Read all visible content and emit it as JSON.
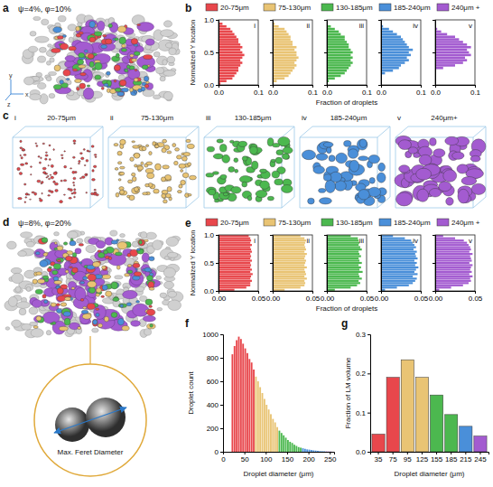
{
  "chart_data": [
    {
      "type": "histogram",
      "orientation": "horizontal",
      "panel": "b",
      "legend": "top",
      "ylabel": "Normalized Y location",
      "xlabel": "Fraction of droplets",
      "bins": [
        0,
        0.04,
        0.08,
        0.12,
        0.16,
        0.2,
        0.24,
        0.28,
        0.32,
        0.36,
        0.4,
        0.44,
        0.48,
        0.52,
        0.56,
        0.6,
        0.64,
        0.68,
        0.72,
        0.76,
        0.8,
        0.84,
        0.88,
        0.92,
        0.96,
        1
      ],
      "xlim": [
        0,
        0.1
      ],
      "xticks": [
        {
          "value": 0,
          "label": "0.0"
        },
        {
          "value": 0.1,
          "label": "0.1"
        }
      ],
      "ylim": [
        0,
        1
      ],
      "yticks": [
        {
          "value": 0,
          "label": "0.0"
        },
        {
          "value": 0.5,
          "label": "0.5"
        },
        {
          "value": 1,
          "label": "1.0"
        }
      ],
      "series": [
        {
          "name": "20-75μm",
          "subpanel": "i",
          "color": "#e8474c",
          "values": [
            0.005,
            0.02,
            0.035,
            0.04,
            0.045,
            0.05,
            0.05,
            0.055,
            0.06,
            0.055,
            0.06,
            0.065,
            0.06,
            0.055,
            0.06,
            0.055,
            0.05,
            0.05,
            0.045,
            0.04,
            0.035,
            0.03,
            0.02,
            0.01,
            0
          ]
        },
        {
          "name": "75-130μm",
          "subpanel": "ii",
          "color": "#e9c474",
          "values": [
            0,
            0.01,
            0.03,
            0.04,
            0.045,
            0.05,
            0.055,
            0.06,
            0.055,
            0.06,
            0.065,
            0.06,
            0.06,
            0.055,
            0.06,
            0.05,
            0.05,
            0.045,
            0.045,
            0.04,
            0.035,
            0.03,
            0.015,
            0.005,
            0
          ]
        },
        {
          "name": "130-185μm",
          "subpanel": "iii",
          "color": "#4cb84f",
          "values": [
            0,
            0.005,
            0.02,
            0.035,
            0.045,
            0.05,
            0.055,
            0.06,
            0.065,
            0.06,
            0.065,
            0.06,
            0.065,
            0.06,
            0.055,
            0.055,
            0.05,
            0.045,
            0.045,
            0.035,
            0.03,
            0.02,
            0.01,
            0,
            0
          ]
        },
        {
          "name": "185-240μm",
          "subpanel": "iv",
          "color": "#4a8fd9",
          "values": [
            0,
            0,
            0,
            0,
            0.01,
            0.03,
            0.045,
            0.05,
            0.06,
            0.07,
            0.065,
            0.075,
            0.07,
            0.08,
            0.07,
            0.065,
            0.06,
            0.055,
            0.05,
            0.04,
            0.03,
            0.02,
            0.005,
            0,
            0
          ]
        },
        {
          "name": "240μm +",
          "subpanel": "v",
          "color": "#a35bd0",
          "values": [
            0,
            0,
            0,
            0,
            0,
            0,
            0.02,
            0.05,
            0.07,
            0.08,
            0.075,
            0.09,
            0.085,
            0.08,
            0.09,
            0.08,
            0.07,
            0.06,
            0.05,
            0.03,
            0.015,
            0.005,
            0,
            0,
            0
          ]
        }
      ]
    },
    {
      "type": "histogram",
      "orientation": "horizontal",
      "panel": "e",
      "legend": "top",
      "ylabel": "Normalized Y location",
      "xlabel": "Fraction of droplets",
      "bins": [
        0,
        0.04,
        0.08,
        0.12,
        0.16,
        0.2,
        0.24,
        0.28,
        0.32,
        0.36,
        0.4,
        0.44,
        0.48,
        0.52,
        0.56,
        0.6,
        0.64,
        0.68,
        0.72,
        0.76,
        0.8,
        0.84,
        0.88,
        0.92,
        0.96,
        1
      ],
      "xlim": [
        0,
        0.05
      ],
      "xticks": [
        {
          "value": 0,
          "label": "0.00"
        },
        {
          "value": 0.05,
          "label": "0.05"
        }
      ],
      "ylim": [
        0,
        1
      ],
      "yticks": [
        {
          "value": 0,
          "label": "0.0"
        },
        {
          "value": 0.5,
          "label": "0.5"
        },
        {
          "value": 1,
          "label": "1.0"
        }
      ],
      "series": [
        {
          "name": "20-75μm",
          "subpanel": "i",
          "color": "#e8474c",
          "values": [
            0.02,
            0.035,
            0.04,
            0.04,
            0.042,
            0.04,
            0.041,
            0.043,
            0.04,
            0.042,
            0.04,
            0.041,
            0.04,
            0.042,
            0.04,
            0.041,
            0.04,
            0.042,
            0.041,
            0.04,
            0.042,
            0.04,
            0.041,
            0.04,
            0.038
          ]
        },
        {
          "name": "75-130μm",
          "subpanel": "ii",
          "color": "#e9c474",
          "values": [
            0.015,
            0.035,
            0.04,
            0.041,
            0.04,
            0.043,
            0.04,
            0.042,
            0.041,
            0.04,
            0.043,
            0.04,
            0.041,
            0.042,
            0.04,
            0.041,
            0.043,
            0.04,
            0.042,
            0.041,
            0.04,
            0.041,
            0.042,
            0.04,
            0.035
          ]
        },
        {
          "name": "130-185μm",
          "subpanel": "iii",
          "color": "#4cb84f",
          "values": [
            0.01,
            0.03,
            0.038,
            0.042,
            0.04,
            0.044,
            0.041,
            0.04,
            0.045,
            0.041,
            0.043,
            0.04,
            0.044,
            0.041,
            0.04,
            0.043,
            0.041,
            0.04,
            0.044,
            0.042,
            0.04,
            0.041,
            0.04,
            0.039,
            0.03
          ]
        },
        {
          "name": "185-240μm",
          "subpanel": "iv",
          "color": "#4a8fd9",
          "values": [
            0.005,
            0.02,
            0.035,
            0.04,
            0.043,
            0.045,
            0.04,
            0.046,
            0.042,
            0.044,
            0.047,
            0.043,
            0.045,
            0.042,
            0.046,
            0.044,
            0.043,
            0.045,
            0.041,
            0.044,
            0.042,
            0.04,
            0.038,
            0.03,
            0.015
          ]
        },
        {
          "name": "240μm +",
          "subpanel": "v",
          "color": "#a35bd0",
          "values": [
            0.005,
            0.02,
            0.035,
            0.042,
            0.045,
            0.044,
            0.047,
            0.043,
            0.046,
            0.044,
            0.045,
            0.047,
            0.043,
            0.046,
            0.045,
            0.044,
            0.047,
            0.043,
            0.045,
            0.044,
            0.042,
            0.04,
            0.036,
            0.025,
            0.01
          ]
        }
      ]
    },
    {
      "type": "histogram",
      "panel": "f",
      "ylabel": "Droplet count",
      "xlabel": "Droplet diameter (μm)",
      "bins": [
        20,
        25,
        30,
        35,
        40,
        45,
        50,
        55,
        60,
        65,
        70,
        75,
        80,
        85,
        90,
        95,
        100,
        105,
        110,
        115,
        120,
        125,
        130,
        135,
        140,
        145,
        150,
        155,
        160,
        165,
        170,
        175,
        180,
        185,
        190,
        195,
        200,
        205,
        210,
        215,
        220,
        225,
        230,
        235,
        240,
        245,
        250,
        255
      ],
      "values": [
        830,
        900,
        950,
        980,
        960,
        920,
        880,
        840,
        790,
        760,
        700,
        640,
        600,
        550,
        500,
        450,
        400,
        360,
        320,
        280,
        250,
        210,
        180,
        160,
        140,
        120,
        100,
        85,
        75,
        60,
        50,
        40,
        35,
        30,
        25,
        20,
        18,
        15,
        12,
        10,
        8,
        6,
        5,
        4,
        3,
        2,
        2
      ],
      "colors": [
        "#e8474c",
        "#e8474c",
        "#e8474c",
        "#e8474c",
        "#e8474c",
        "#e8474c",
        "#e8474c",
        "#e8474c",
        "#e8474c",
        "#e8474c",
        "#e8474c",
        "#e9c474",
        "#e9c474",
        "#e9c474",
        "#e9c474",
        "#e9c474",
        "#e9c474",
        "#e9c474",
        "#e9c474",
        "#e9c474",
        "#e9c474",
        "#e9c474",
        "#4cb84f",
        "#4cb84f",
        "#4cb84f",
        "#4cb84f",
        "#4cb84f",
        "#4cb84f",
        "#4cb84f",
        "#4cb84f",
        "#4cb84f",
        "#4cb84f",
        "#4cb84f",
        "#4a8fd9",
        "#4a8fd9",
        "#4a8fd9",
        "#4a8fd9",
        "#4a8fd9",
        "#4a8fd9",
        "#4a8fd9",
        "#4a8fd9",
        "#4a8fd9",
        "#4a8fd9",
        "#4a8fd9",
        "#a35bd0",
        "#a35bd0",
        "#a35bd0"
      ],
      "xlim": [
        0,
        260
      ],
      "xticks": [
        0,
        50,
        100,
        150,
        200,
        250
      ],
      "ylim": [
        0,
        1000
      ],
      "yticks": [
        0,
        200,
        400,
        600,
        800,
        1000
      ]
    },
    {
      "type": "bar",
      "panel": "g",
      "ylabel": "Fraction of LM volume",
      "xlabel": "Droplet diameter (μm)",
      "categories": [
        "35",
        "75",
        "95",
        "125",
        "155",
        "185",
        "215",
        "245"
      ],
      "values": [
        0.045,
        0.19,
        0.235,
        0.19,
        0.145,
        0.095,
        0.065,
        0.04
      ],
      "colors": [
        "#e8474c",
        "#e8474c",
        "#e9c474",
        "#e9c474",
        "#4cb84f",
        "#4cb84f",
        "#4a8fd9",
        "#a35bd0"
      ],
      "ylim": [
        0,
        0.3
      ],
      "yticks": [
        {
          "value": 0,
          "label": "0.0"
        },
        {
          "value": 0.1,
          "label": "0.1"
        },
        {
          "value": 0.2,
          "label": "0.2"
        },
        {
          "value": 0.3,
          "label": "0.3"
        }
      ]
    }
  ],
  "renders": [
    {
      "panel": "a",
      "caption": "ψ=4%, φ=10%",
      "axis_labels": [
        "y",
        "x",
        "z"
      ]
    },
    {
      "panel": "c",
      "items": [
        {
          "numeral": "i",
          "title": "20-75μm",
          "color": "#e8474c"
        },
        {
          "numeral": "ii",
          "title": "75-130μm",
          "color": "#e9c474"
        },
        {
          "numeral": "iii",
          "title": "130-185μm",
          "color": "#4cb84f"
        },
        {
          "numeral": "iv",
          "title": "185-240μm",
          "color": "#4a8fd9"
        },
        {
          "numeral": "v",
          "title": "240μm+",
          "color": "#a35bd0"
        }
      ]
    },
    {
      "panel": "d",
      "caption": "ψ=8%, φ=20%",
      "inset": "Max. Feret Diameter"
    }
  ]
}
